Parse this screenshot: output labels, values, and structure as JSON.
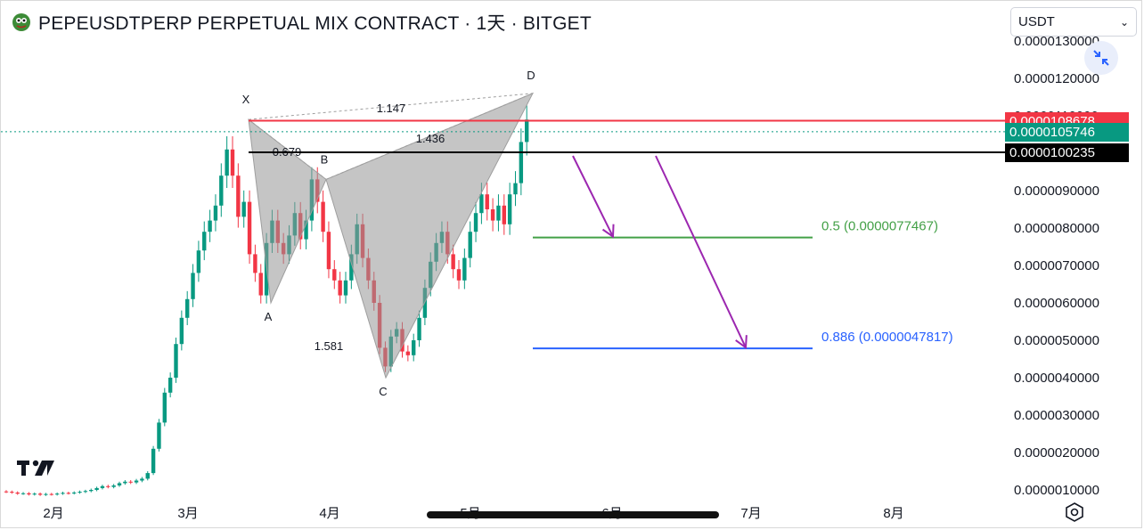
{
  "header": {
    "title": "PEPEUSDTPERP PERPETUAL MIX CONTRACT · 1天 · BITGET",
    "coin_icon": "pepe-coin-icon"
  },
  "toolbar": {
    "currency_value": "USDT",
    "currency_chevron": "⌄",
    "collapse_icon": "collapse-arrows-icon",
    "settings_icon": "hexagon-settings-icon",
    "logo_icon": "tradingview-logo-icon",
    "partial_top_price": "0.0000130000"
  },
  "price_tags": [
    {
      "label": "0.0000108678",
      "price": 1.08678e-05,
      "color": "#f23645"
    },
    {
      "label": "0.0000105746",
      "price": 1.05746e-05,
      "color": "#089981"
    },
    {
      "label": "0.0000100235",
      "price": 1.00235e-05,
      "color": "#000000"
    }
  ],
  "chart_data": {
    "type": "candlestick",
    "title": "PEPEUSDTPERP PERPETUAL MIX CONTRACT · 1天 · BITGET",
    "x_ticks": [
      "2月",
      "3月",
      "4月",
      "5月",
      "6月",
      "7月",
      "8月"
    ],
    "y_ticks": [
      "0.0000120000",
      "0.0000110000",
      "0.0000100000",
      "0.0000090000",
      "0.0000080000",
      "0.0000070000",
      "0.0000060000",
      "0.0000050000",
      "0.0000040000",
      "0.0000030000",
      "0.0000020000",
      "0.0000010000"
    ],
    "y_tick_values": [
      12,
      11,
      10,
      9,
      8,
      7,
      6,
      5,
      4,
      3,
      2,
      1
    ],
    "y_unit_scale": 1e-06,
    "candles_close": [
      0.95,
      0.93,
      0.9,
      0.91,
      0.88,
      0.9,
      0.87,
      0.89,
      0.88,
      0.9,
      0.92,
      0.91,
      0.93,
      0.95,
      0.97,
      1.0,
      1.05,
      1.1,
      1.08,
      1.12,
      1.18,
      1.22,
      1.2,
      1.25,
      1.3,
      1.45,
      2.1,
      2.8,
      3.6,
      4.0,
      4.9,
      5.6,
      6.1,
      6.8,
      7.4,
      7.9,
      8.2,
      8.6,
      9.4,
      10.1,
      9.4,
      8.3,
      8.7,
      7.3,
      6.8,
      6.2,
      7.6,
      8.2,
      7.6,
      7.3,
      7.8,
      8.4,
      7.7,
      8.2,
      9.3,
      8.7,
      7.9,
      6.9,
      6.6,
      6.2,
      6.6,
      7.3,
      8.1,
      7.2,
      6.6,
      6.0,
      4.8,
      4.3,
      5.1,
      5.3,
      4.7,
      4.6,
      5.0,
      5.6,
      6.4,
      7.1,
      7.6,
      7.9,
      7.3,
      6.9,
      6.6,
      7.2,
      7.9,
      8.4,
      8.9,
      8.5,
      8.2,
      8.6,
      8.1,
      8.9,
      9.2,
      10.3,
      10.9
    ],
    "pattern_points": [
      {
        "label": "X",
        "value": 10.9
      },
      {
        "label": "A",
        "value": 6.0
      },
      {
        "label": "B",
        "value": 9.3
      },
      {
        "label": "C",
        "value": 4.0
      },
      {
        "label": "D",
        "value": 11.6
      }
    ],
    "pattern_ratios": [
      "1.147",
      "0.679",
      "1.436",
      "1.581"
    ],
    "fib_levels": [
      {
        "label": "0.5 (0.0000077467)",
        "value": 7.7467,
        "color": "#43a047"
      },
      {
        "label": "0.886 (0.0000047817)",
        "value": 4.7817,
        "color": "#2962ff"
      }
    ],
    "horizontal_lines": [
      {
        "value": 10.8678,
        "color": "#f23645"
      },
      {
        "value": 10.5746,
        "color": "#089981"
      },
      {
        "value": 10.0235,
        "color": "#000000"
      }
    ],
    "arrows": [
      "purple-arrow-to-0.5",
      "purple-arrow-to-0.886"
    ],
    "grid": false,
    "legend": "none"
  }
}
